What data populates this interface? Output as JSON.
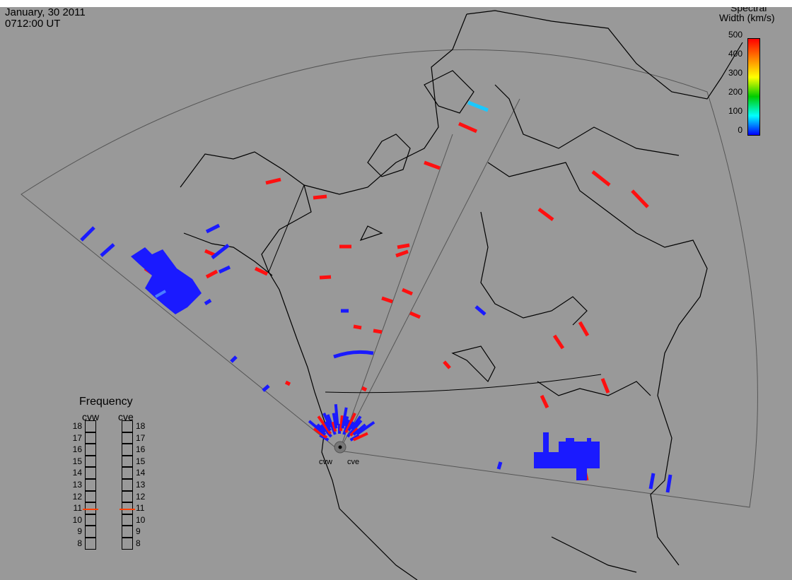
{
  "header": {
    "date": "January, 30 2011",
    "time": "0712:00 UT"
  },
  "colorbar": {
    "title_line1": "Spectral",
    "title_line2": "Width (km/s)",
    "ticks": [
      "500",
      "400",
      "300",
      "200",
      "100",
      "0"
    ],
    "colors": [
      "#ff0000",
      "#ff8000",
      "#ffff00",
      "#00cc00",
      "#00ffff",
      "#0000ff"
    ]
  },
  "frequency_panel": {
    "title": "Frequency",
    "radars": [
      "cvw",
      "cve"
    ],
    "scale": [
      "18",
      "17",
      "16",
      "15",
      "14",
      "13",
      "12",
      "11",
      "10",
      "9",
      "8"
    ],
    "cvw_mhz": 10.9,
    "cve_mhz": 10.9
  },
  "sites": [
    "cvw",
    "cve"
  ],
  "scatter_colors": {
    "low": "#1a1aff",
    "mid": "#4a7dff",
    "cyan": "#19c8ff",
    "high": "#ff1010"
  }
}
